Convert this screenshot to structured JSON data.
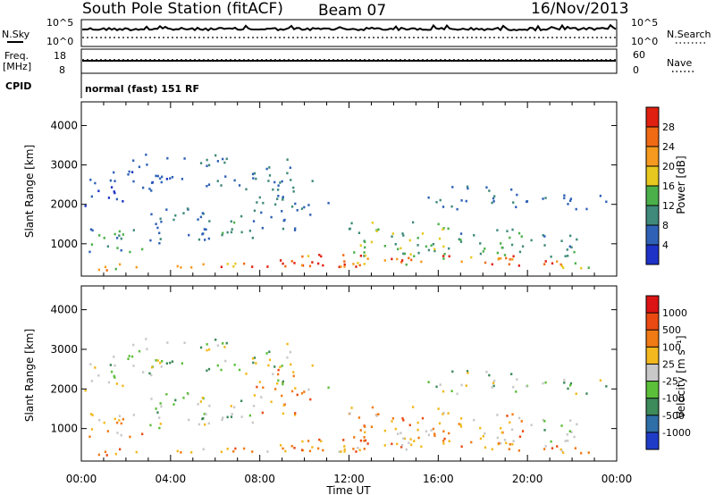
{
  "header": {
    "title": "South Pole Station (fitACF)",
    "beam": "Beam 07",
    "date": "16/Nov/2013"
  },
  "strips": {
    "nsky_label": "N.Sky",
    "nsky_top": "10^5",
    "nsky_bottom": "10^0",
    "nsearch_label": "N.Search",
    "nsearch_top": "10^5",
    "nsearch_bottom": "10^0",
    "freq_label": "Freq.",
    "freq_unit": "[MHz]",
    "freq_top": "18",
    "freq_bottom": "8",
    "nave_label": "Nave",
    "nave_top": "60",
    "nave_bottom": "0",
    "cpid_label": "CPID",
    "cpid_value": "normal (fast) 151 RF"
  },
  "colors": {
    "power": [
      "#1e32c8",
      "#2f62b6",
      "#3f8a7a",
      "#4bb04a",
      "#e6c81e",
      "#f59a1e",
      "#f06a14",
      "#e02010"
    ],
    "velocity": [
      "#1f3cc8",
      "#2f6fa8",
      "#3d8a5a",
      "#5cbf3a",
      "#c8c8c8",
      "#f3b81e",
      "#f07a14",
      "#ea4a12",
      "#dc1414"
    ]
  },
  "chart_data": [
    {
      "type": "heatmap",
      "name": "Power",
      "ylabel": "Slant Range [km]",
      "xlabel": "",
      "yticks": [
        "1000",
        "2000",
        "3000",
        "4000"
      ],
      "ylim": [
        180,
        4600
      ],
      "colorbar_label": "Power [dB]",
      "colorbar_ticks": [
        "4",
        "8",
        "12",
        "16",
        "20",
        "24",
        "28"
      ],
      "colorbar_range": [
        0,
        32
      ]
    },
    {
      "type": "heatmap",
      "name": "Velocity",
      "ylabel": "Slant Range [km]",
      "xlabel": "Time UT",
      "xticks": [
        "00:00",
        "04:00",
        "08:00",
        "12:00",
        "16:00",
        "20:00",
        "00:00"
      ],
      "yticks": [
        "1000",
        "2000",
        "3000",
        "4000"
      ],
      "ylim": [
        180,
        4600
      ],
      "colorbar_label": "Velocity [m s⁻¹]",
      "colorbar_ticks": [
        "1000",
        "500",
        "100",
        "25",
        "-25",
        "-100",
        "-500",
        "-1000"
      ]
    }
  ]
}
